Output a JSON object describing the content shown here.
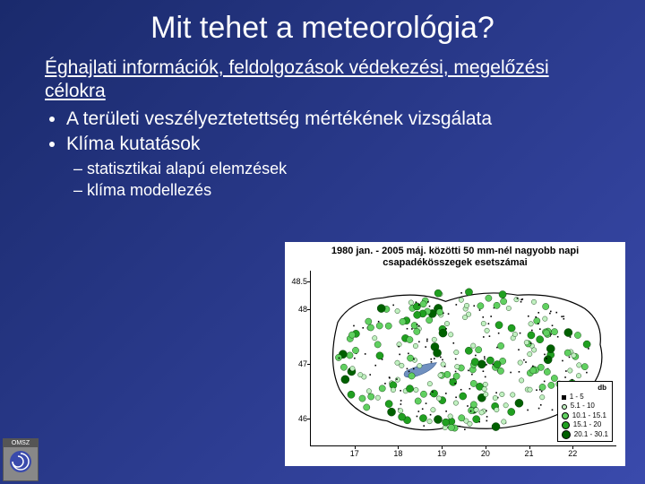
{
  "title": "Mit tehet a meteorológia?",
  "lead": "Éghajlati információk, feldolgozások védekezési, megelőzési célokra",
  "bullets": [
    "A területi veszélyeztetettség mértékének vizsgálata",
    "Klíma kutatások"
  ],
  "sub": [
    "statisztikai alapú elemzések",
    "klíma modellezés"
  ],
  "map": {
    "title": "1980 jan. - 2005 máj. közötti 50 mm-nél nagyobb napi csapadékösszegek esetszámai",
    "y_axis": {
      "min": 45.5,
      "max": 48.7,
      "ticks": [
        46,
        47,
        48,
        48.5
      ]
    },
    "x_axis": {
      "min": 16,
      "max": 23,
      "ticks": [
        17,
        18,
        19,
        20,
        21,
        22
      ]
    },
    "outline_color": "#000000",
    "background": "#ffffff",
    "legend": {
      "header": "db",
      "rows": [
        {
          "label": "1 - 5",
          "color": "#000000",
          "shape": "sq",
          "size": 5
        },
        {
          "label": "5.1 - 10",
          "color": "#c0f0c0",
          "shape": "circle",
          "size": 6
        },
        {
          "label": "10.1 - 15.1",
          "color": "#60d060",
          "shape": "circle",
          "size": 8
        },
        {
          "label": "15.1 - 20",
          "color": "#20a020",
          "shape": "circle",
          "size": 9
        },
        {
          "label": "20.1 - 30.1",
          "color": "#006000",
          "shape": "circle",
          "size": 10
        }
      ]
    },
    "points_seed_note": "scatter of ~400 stations across Hungary outline, mixed black dots and green circles of varying size"
  },
  "logo_text": "OMSZ"
}
